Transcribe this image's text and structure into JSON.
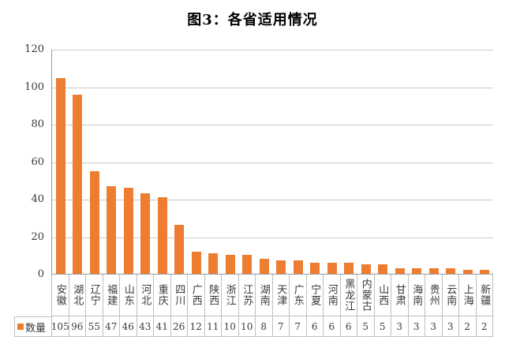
{
  "chart_data": {
    "type": "bar",
    "title": "图3：各省适用情况",
    "categories": [
      "安徽",
      "湖北",
      "辽宁",
      "福建",
      "山东",
      "河北",
      "重庆",
      "四川",
      "广西",
      "陕西",
      "浙江",
      "江苏",
      "湖南",
      "天津",
      "广东",
      "宁夏",
      "河南",
      "黑龙江",
      "内蒙古",
      "山西",
      "甘肃",
      "海南",
      "贵州",
      "云南",
      "上海",
      "新疆"
    ],
    "series": [
      {
        "name": "数量",
        "values": [
          105,
          96,
          55,
          47,
          46,
          43,
          41,
          26,
          12,
          11,
          10,
          10,
          8,
          7,
          7,
          6,
          6,
          6,
          5,
          5,
          3,
          3,
          3,
          3,
          2,
          2
        ]
      }
    ],
    "xlabel": "",
    "ylabel": "",
    "ylim": [
      0,
      120
    ],
    "yticks": [
      0,
      20,
      40,
      60,
      80,
      100,
      120
    ],
    "grid": true,
    "legend_position": "bottom-left",
    "data_table_shown": true
  },
  "colors": {
    "bar": "#ED7D31",
    "gridline": "#C9C9C9",
    "axis": "#9A9A9A",
    "table_border": "#BFBFBF",
    "text": "#3A3A3A",
    "title_text": "#000000",
    "background": "#FFFFFF"
  }
}
